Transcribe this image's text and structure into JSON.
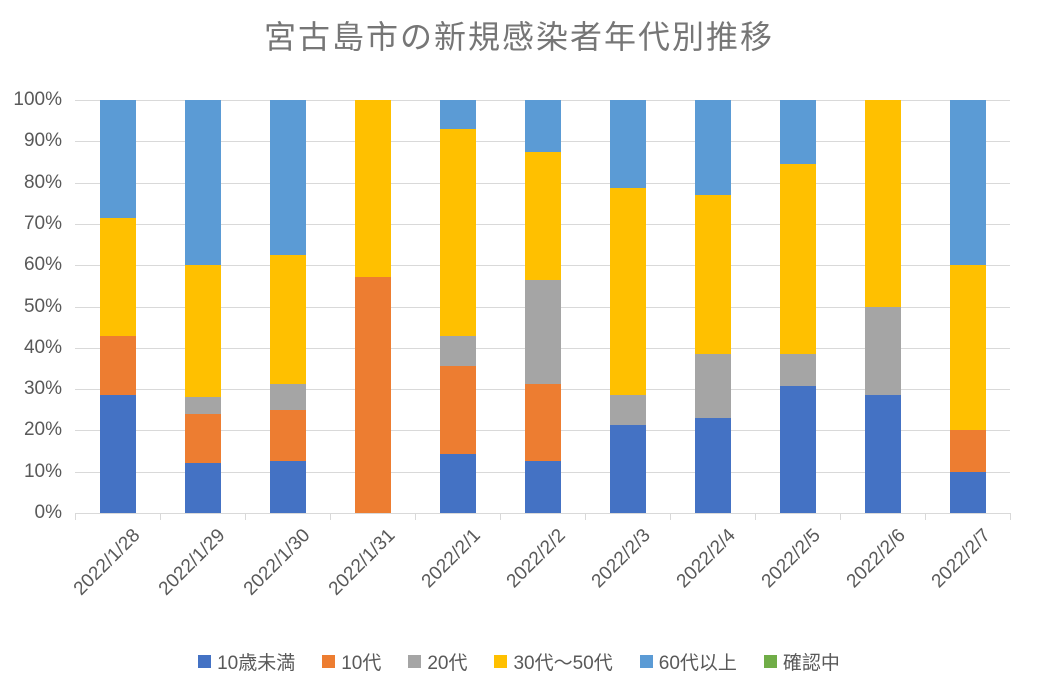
{
  "chart_data": {
    "type": "bar",
    "variant": "stacked-100-percent",
    "title": "宮古島市の新規感染者年代別推移",
    "xlabel": "",
    "ylabel": "",
    "ylim": [
      0,
      100
    ],
    "y_ticks": [
      "0%",
      "10%",
      "20%",
      "30%",
      "40%",
      "50%",
      "60%",
      "70%",
      "80%",
      "90%",
      "100%"
    ],
    "grid": true,
    "legend_position": "bottom",
    "categories": [
      "2022/1/28",
      "2022/1/29",
      "2022/1/30",
      "2022/1/31",
      "2022/2/1",
      "2022/2/2",
      "2022/2/3",
      "2022/2/4",
      "2022/2/5",
      "2022/2/6",
      "2022/2/7"
    ],
    "series": [
      {
        "name": "10歳未満",
        "color": "#4472C4",
        "values": [
          28.6,
          12.0,
          12.5,
          0,
          14.3,
          12.5,
          21.4,
          23.1,
          30.8,
          28.6,
          10.0
        ]
      },
      {
        "name": "10代",
        "color": "#ED7D31",
        "values": [
          14.3,
          12.0,
          12.5,
          57.1,
          21.4,
          18.8,
          0,
          0,
          0,
          0,
          10.0
        ]
      },
      {
        "name": "20代",
        "color": "#A5A5A5",
        "values": [
          0,
          4.0,
          6.2,
          0,
          7.2,
          25.0,
          7.2,
          15.4,
          7.7,
          21.4,
          0
        ]
      },
      {
        "name": "30代〜50代",
        "color": "#FFC000",
        "values": [
          28.6,
          32.0,
          31.3,
          42.9,
          50.0,
          31.2,
          50.0,
          38.4,
          46.1,
          50.0,
          40.0
        ]
      },
      {
        "name": "60代以上",
        "color": "#5B9BD5",
        "values": [
          28.5,
          40.0,
          37.5,
          0,
          7.1,
          12.5,
          21.4,
          23.1,
          15.4,
          0,
          40.0
        ]
      },
      {
        "name": "確認中",
        "color": "#70AD47",
        "values": [
          0,
          0,
          0,
          0,
          0,
          0,
          0,
          0,
          0,
          0,
          0
        ]
      }
    ]
  },
  "style_colors": {
    "title_text": "#767676",
    "axis_text": "#595959",
    "gridline": "#D9D9D9",
    "background": "#FFFFFF"
  }
}
